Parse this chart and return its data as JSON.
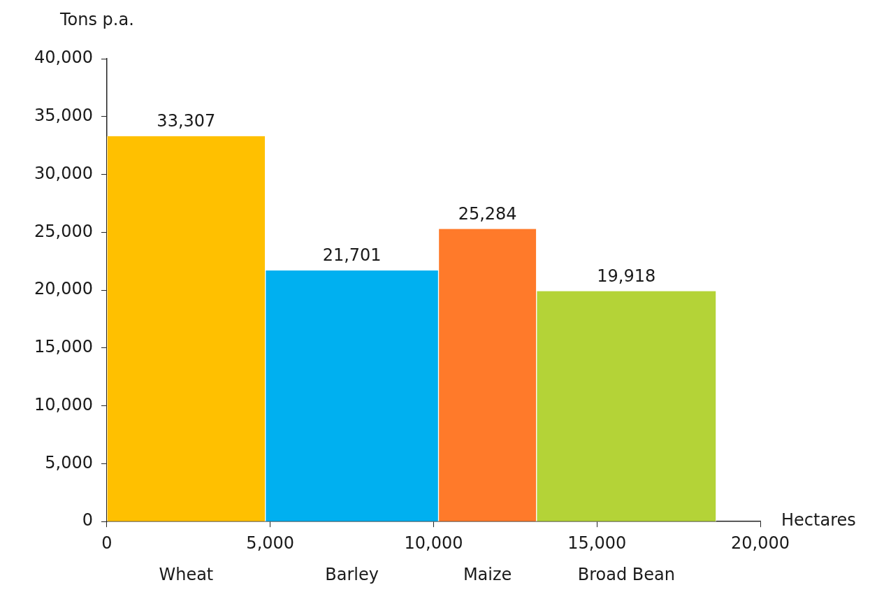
{
  "chart_data": {
    "type": "histogram",
    "xlabel": "Hectares",
    "ylabel": "Tons p.a.",
    "categories": [
      "Wheat",
      "Barley",
      "Maize",
      "Broad Bean"
    ],
    "bins": [
      0,
      4850,
      10150,
      13150,
      18650
    ],
    "values": [
      33307,
      21701,
      25284,
      19918
    ],
    "value_labels": [
      "33,307",
      "21,701",
      "25,284",
      "19,918"
    ],
    "colors": [
      "#ffc000",
      "#00b0f0",
      "#ff7a2a",
      "#b4d337"
    ],
    "xlim": [
      0,
      20000
    ],
    "xticks": [
      {
        "value": 0,
        "label": "0"
      },
      {
        "value": 5000,
        "label": "5,000"
      },
      {
        "value": 10000,
        "label": "10,000"
      },
      {
        "value": 15000,
        "label": "15,000"
      },
      {
        "value": 20000,
        "label": "20,000"
      }
    ],
    "ylim": [
      0,
      40000
    ],
    "yticks": [
      {
        "value": 0,
        "label": "0"
      },
      {
        "value": 5000,
        "label": "5,000"
      },
      {
        "value": 10000,
        "label": "10,000"
      },
      {
        "value": 15000,
        "label": "15,000"
      },
      {
        "value": 20000,
        "label": "20,000"
      },
      {
        "value": 25000,
        "label": "25,000"
      },
      {
        "value": 30000,
        "label": "30,000"
      },
      {
        "value": 35000,
        "label": "35,000"
      },
      {
        "value": 40000,
        "label": "40,000"
      }
    ],
    "grid": false,
    "legend": false
  }
}
